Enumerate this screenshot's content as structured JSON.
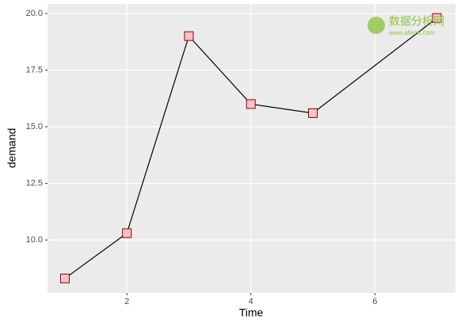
{
  "chart_data": {
    "type": "line",
    "x_label": "Time",
    "y_label": "demand",
    "x": [
      1,
      2,
      3,
      4,
      5,
      7
    ],
    "series": [
      {
        "name": "demand",
        "color": "#000000",
        "marker_fill": "#ffc0cb",
        "marker_stroke": "#8b0000",
        "values": [
          8.3,
          10.3,
          19.0,
          16.0,
          15.6,
          19.8
        ]
      }
    ],
    "xlim": [
      0.72,
      7.3
    ],
    "ylim": [
      7.66,
      20.42
    ],
    "xticks": [
      2,
      4,
      6
    ],
    "yticks": [
      {
        "value": 10,
        "label": "10.0"
      },
      {
        "value": 12.5,
        "label": "12.5"
      },
      {
        "value": 15,
        "label": "15.0"
      },
      {
        "value": 17.5,
        "label": "17.5"
      },
      {
        "value": 20,
        "label": "20.0"
      }
    ],
    "grid": true,
    "watermark": {
      "title": "数据分析网",
      "url": "www.afenxi.com"
    }
  }
}
